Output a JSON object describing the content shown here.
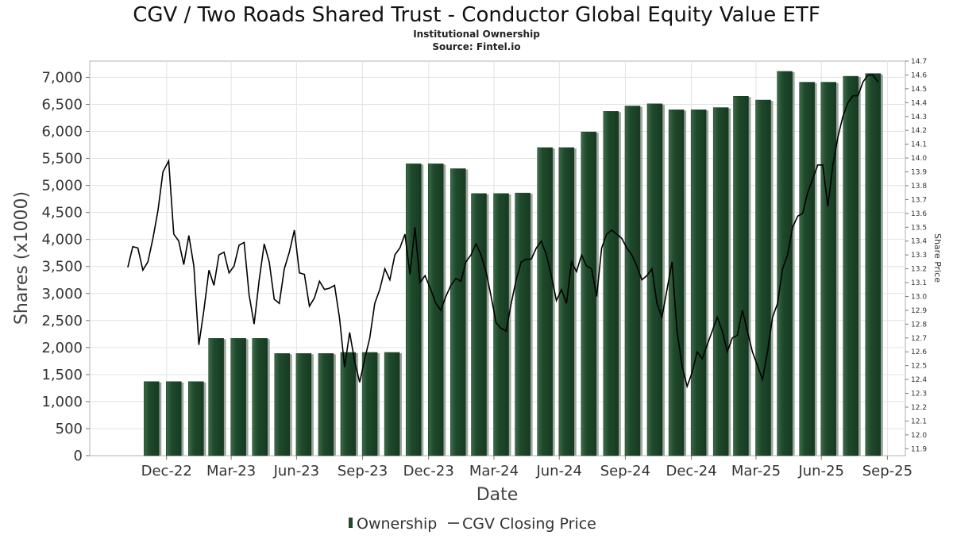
{
  "chart_data": {
    "type": "bar",
    "title": "CGV / Two Roads Shared Trust - Conductor Global Equity Value ETF",
    "subtitle": "Institutional Ownership",
    "source": "Source: Fintel.io",
    "xlabel": "Date",
    "ylabel": "Shares (x1000)",
    "y2label": "Share Price",
    "ylim": [
      0,
      7300
    ],
    "y2lim": [
      11.85,
      14.7
    ],
    "yticks": [
      0,
      500,
      1000,
      1500,
      2000,
      2500,
      3000,
      3500,
      4000,
      4500,
      5000,
      5500,
      6000,
      6500,
      7000
    ],
    "ytick_labels": [
      "0",
      "500",
      "1,000",
      "1,500",
      "2,000",
      "2,500",
      "3,000",
      "3,500",
      "4,000",
      "4,500",
      "5,000",
      "5,500",
      "6,000",
      "6,500",
      "7,000"
    ],
    "y2ticks": [
      "11.9",
      "12.0",
      "12.1",
      "12.2",
      "12.3",
      "12.4",
      "12.5",
      "12.6",
      "12.7",
      "12.8",
      "12.9",
      "13.0",
      "13.1",
      "13.2",
      "13.3",
      "13.4",
      "13.5",
      "13.6",
      "13.7",
      "13.8",
      "13.9",
      "14.0",
      "14.1",
      "14.2",
      "14.3",
      "14.4",
      "14.5",
      "14.6",
      "14.7"
    ],
    "xlim": [
      "2022-09-15",
      "2025-10-25"
    ],
    "xticks": [
      {
        "date": "2022-12-31",
        "label": "Dec-22"
      },
      {
        "date": "2023-03-31",
        "label": "Mar-23"
      },
      {
        "date": "2023-06-30",
        "label": "Jun-23"
      },
      {
        "date": "2023-09-30",
        "label": "Sep-23"
      },
      {
        "date": "2023-12-31",
        "label": "Dec-23"
      },
      {
        "date": "2024-03-31",
        "label": "Mar-24"
      },
      {
        "date": "2024-06-30",
        "label": "Jun-24"
      },
      {
        "date": "2024-09-30",
        "label": "Sep-24"
      },
      {
        "date": "2024-12-31",
        "label": "Dec-24"
      },
      {
        "date": "2025-03-31",
        "label": "Mar-25"
      },
      {
        "date": "2025-06-30",
        "label": "Jun-25"
      },
      {
        "date": "2025-09-30",
        "label": "Sep-25"
      }
    ],
    "series": [
      {
        "name": "Ownership",
        "type": "bar",
        "color": "#1f4a2c",
        "points": [
          {
            "x": "2022-12-10",
            "y": 1370
          },
          {
            "x": "2023-01-10",
            "y": 1370
          },
          {
            "x": "2023-02-10",
            "y": 1370
          },
          {
            "x": "2023-03-10",
            "y": 2170
          },
          {
            "x": "2023-04-10",
            "y": 2170
          },
          {
            "x": "2023-05-10",
            "y": 2170
          },
          {
            "x": "2023-06-10",
            "y": 1890
          },
          {
            "x": "2023-07-10",
            "y": 1890
          },
          {
            "x": "2023-08-10",
            "y": 1890
          },
          {
            "x": "2023-09-10",
            "y": 1910
          },
          {
            "x": "2023-10-10",
            "y": 1910
          },
          {
            "x": "2023-11-10",
            "y": 1910
          },
          {
            "x": "2023-12-10",
            "y": 5400
          },
          {
            "x": "2024-01-10",
            "y": 5400
          },
          {
            "x": "2024-02-10",
            "y": 5310
          },
          {
            "x": "2024-03-10",
            "y": 4850
          },
          {
            "x": "2024-04-10",
            "y": 4850
          },
          {
            "x": "2024-05-10",
            "y": 4860
          },
          {
            "x": "2024-06-10",
            "y": 5700
          },
          {
            "x": "2024-07-10",
            "y": 5700
          },
          {
            "x": "2024-08-10",
            "y": 5990
          },
          {
            "x": "2024-09-10",
            "y": 6370
          },
          {
            "x": "2024-10-10",
            "y": 6470
          },
          {
            "x": "2024-11-10",
            "y": 6510
          },
          {
            "x": "2024-12-10",
            "y": 6400
          },
          {
            "x": "2025-01-10",
            "y": 6400
          },
          {
            "x": "2025-02-10",
            "y": 6440
          },
          {
            "x": "2025-03-10",
            "y": 6650
          },
          {
            "x": "2025-04-10",
            "y": 6580
          },
          {
            "x": "2025-05-10",
            "y": 7110
          },
          {
            "x": "2025-06-10",
            "y": 6910
          },
          {
            "x": "2025-07-10",
            "y": 6910
          },
          {
            "x": "2025-08-10",
            "y": 7020
          },
          {
            "x": "2025-09-10",
            "y": 7070
          }
        ]
      },
      {
        "name": "CGV Closing Price",
        "type": "line",
        "axis": "right",
        "color": "#000000",
        "points": [
          {
            "x": "2022-11-07",
            "y": 13.21
          },
          {
            "x": "2022-11-14",
            "y": 13.36
          },
          {
            "x": "2022-11-21",
            "y": 13.35
          },
          {
            "x": "2022-11-28",
            "y": 13.19
          },
          {
            "x": "2022-12-05",
            "y": 13.25
          },
          {
            "x": "2022-12-12",
            "y": 13.42
          },
          {
            "x": "2022-12-19",
            "y": 13.62
          },
          {
            "x": "2022-12-26",
            "y": 13.9
          },
          {
            "x": "2023-01-03",
            "y": 13.98
          },
          {
            "x": "2023-01-10",
            "y": 13.45
          },
          {
            "x": "2023-01-17",
            "y": 13.4
          },
          {
            "x": "2023-01-24",
            "y": 13.23
          },
          {
            "x": "2023-01-31",
            "y": 13.44
          },
          {
            "x": "2023-02-07",
            "y": 13.22
          },
          {
            "x": "2023-02-14",
            "y": 12.65
          },
          {
            "x": "2023-02-21",
            "y": 12.9
          },
          {
            "x": "2023-02-28",
            "y": 13.19
          },
          {
            "x": "2023-03-07",
            "y": 13.08
          },
          {
            "x": "2023-03-14",
            "y": 13.3
          },
          {
            "x": "2023-03-21",
            "y": 13.32
          },
          {
            "x": "2023-03-28",
            "y": 13.17
          },
          {
            "x": "2023-04-04",
            "y": 13.22
          },
          {
            "x": "2023-04-11",
            "y": 13.37
          },
          {
            "x": "2023-04-18",
            "y": 13.39
          },
          {
            "x": "2023-04-25",
            "y": 13.01
          },
          {
            "x": "2023-05-02",
            "y": 12.8
          },
          {
            "x": "2023-05-09",
            "y": 13.12
          },
          {
            "x": "2023-05-16",
            "y": 13.38
          },
          {
            "x": "2023-05-23",
            "y": 13.25
          },
          {
            "x": "2023-05-30",
            "y": 12.98
          },
          {
            "x": "2023-06-06",
            "y": 12.95
          },
          {
            "x": "2023-06-13",
            "y": 13.2
          },
          {
            "x": "2023-06-20",
            "y": 13.32
          },
          {
            "x": "2023-06-27",
            "y": 13.48
          },
          {
            "x": "2023-07-04",
            "y": 13.17
          },
          {
            "x": "2023-07-11",
            "y": 13.16
          },
          {
            "x": "2023-07-18",
            "y": 12.93
          },
          {
            "x": "2023-07-25",
            "y": 12.99
          },
          {
            "x": "2023-08-01",
            "y": 13.11
          },
          {
            "x": "2023-08-08",
            "y": 13.05
          },
          {
            "x": "2023-08-15",
            "y": 13.06
          },
          {
            "x": "2023-08-22",
            "y": 13.08
          },
          {
            "x": "2023-08-29",
            "y": 12.84
          },
          {
            "x": "2023-09-05",
            "y": 12.49
          },
          {
            "x": "2023-09-12",
            "y": 12.74
          },
          {
            "x": "2023-09-19",
            "y": 12.53
          },
          {
            "x": "2023-09-26",
            "y": 12.38
          },
          {
            "x": "2023-10-03",
            "y": 12.55
          },
          {
            "x": "2023-10-10",
            "y": 12.7
          },
          {
            "x": "2023-10-17",
            "y": 12.95
          },
          {
            "x": "2023-10-24",
            "y": 13.05
          },
          {
            "x": "2023-10-31",
            "y": 13.2
          },
          {
            "x": "2023-11-07",
            "y": 13.12
          },
          {
            "x": "2023-11-14",
            "y": 13.3
          },
          {
            "x": "2023-11-21",
            "y": 13.35
          },
          {
            "x": "2023-11-28",
            "y": 13.45
          },
          {
            "x": "2023-12-05",
            "y": 13.16
          },
          {
            "x": "2023-12-12",
            "y": 13.5
          },
          {
            "x": "2023-12-19",
            "y": 13.1
          },
          {
            "x": "2023-12-26",
            "y": 13.15
          },
          {
            "x": "2024-01-03",
            "y": 13.05
          },
          {
            "x": "2024-01-10",
            "y": 12.95
          },
          {
            "x": "2024-01-17",
            "y": 12.9
          },
          {
            "x": "2024-01-24",
            "y": 13.0
          },
          {
            "x": "2024-01-31",
            "y": 13.08
          },
          {
            "x": "2024-02-07",
            "y": 13.13
          },
          {
            "x": "2024-02-14",
            "y": 13.11
          },
          {
            "x": "2024-02-21",
            "y": 13.25
          },
          {
            "x": "2024-02-28",
            "y": 13.3
          },
          {
            "x": "2024-03-06",
            "y": 13.38
          },
          {
            "x": "2024-03-13",
            "y": 13.3
          },
          {
            "x": "2024-03-20",
            "y": 13.18
          },
          {
            "x": "2024-03-27",
            "y": 13.0
          },
          {
            "x": "2024-04-03",
            "y": 12.81
          },
          {
            "x": "2024-04-10",
            "y": 12.77
          },
          {
            "x": "2024-04-17",
            "y": 12.75
          },
          {
            "x": "2024-04-24",
            "y": 12.95
          },
          {
            "x": "2024-05-01",
            "y": 13.12
          },
          {
            "x": "2024-05-08",
            "y": 13.25
          },
          {
            "x": "2024-05-15",
            "y": 13.27
          },
          {
            "x": "2024-05-22",
            "y": 13.27
          },
          {
            "x": "2024-05-29",
            "y": 13.35
          },
          {
            "x": "2024-06-05",
            "y": 13.4
          },
          {
            "x": "2024-06-12",
            "y": 13.3
          },
          {
            "x": "2024-06-19",
            "y": 13.15
          },
          {
            "x": "2024-06-26",
            "y": 12.97
          },
          {
            "x": "2024-07-03",
            "y": 13.05
          },
          {
            "x": "2024-07-10",
            "y": 12.95
          },
          {
            "x": "2024-07-17",
            "y": 13.25
          },
          {
            "x": "2024-07-24",
            "y": 13.18
          },
          {
            "x": "2024-07-31",
            "y": 13.3
          },
          {
            "x": "2024-08-07",
            "y": 13.22
          },
          {
            "x": "2024-08-14",
            "y": 13.2
          },
          {
            "x": "2024-08-21",
            "y": 13.0
          },
          {
            "x": "2024-08-28",
            "y": 13.35
          },
          {
            "x": "2024-09-04",
            "y": 13.45
          },
          {
            "x": "2024-09-11",
            "y": 13.48
          },
          {
            "x": "2024-09-18",
            "y": 13.45
          },
          {
            "x": "2024-09-25",
            "y": 13.42
          },
          {
            "x": "2024-10-02",
            "y": 13.35
          },
          {
            "x": "2024-10-09",
            "y": 13.3
          },
          {
            "x": "2024-10-16",
            "y": 13.22
          },
          {
            "x": "2024-10-23",
            "y": 13.12
          },
          {
            "x": "2024-10-30",
            "y": 13.15
          },
          {
            "x": "2024-11-06",
            "y": 13.2
          },
          {
            "x": "2024-11-13",
            "y": 12.95
          },
          {
            "x": "2024-11-20",
            "y": 12.85
          },
          {
            "x": "2024-11-27",
            "y": 13.05
          },
          {
            "x": "2024-12-04",
            "y": 13.25
          },
          {
            "x": "2024-12-11",
            "y": 12.75
          },
          {
            "x": "2024-12-18",
            "y": 12.5
          },
          {
            "x": "2024-12-25",
            "y": 12.35
          },
          {
            "x": "2025-01-01",
            "y": 12.45
          },
          {
            "x": "2025-01-08",
            "y": 12.6
          },
          {
            "x": "2025-01-15",
            "y": 12.55
          },
          {
            "x": "2025-01-22",
            "y": 12.65
          },
          {
            "x": "2025-01-29",
            "y": 12.75
          },
          {
            "x": "2025-02-05",
            "y": 12.85
          },
          {
            "x": "2025-02-12",
            "y": 12.75
          },
          {
            "x": "2025-02-19",
            "y": 12.6
          },
          {
            "x": "2025-02-26",
            "y": 12.7
          },
          {
            "x": "2025-03-05",
            "y": 12.72
          },
          {
            "x": "2025-03-12",
            "y": 12.9
          },
          {
            "x": "2025-03-19",
            "y": 12.75
          },
          {
            "x": "2025-03-26",
            "y": 12.6
          },
          {
            "x": "2025-04-02",
            "y": 12.5
          },
          {
            "x": "2025-04-09",
            "y": 12.4
          },
          {
            "x": "2025-04-16",
            "y": 12.6
          },
          {
            "x": "2025-04-23",
            "y": 12.85
          },
          {
            "x": "2025-04-30",
            "y": 12.95
          },
          {
            "x": "2025-05-07",
            "y": 13.2
          },
          {
            "x": "2025-05-14",
            "y": 13.3
          },
          {
            "x": "2025-05-21",
            "y": 13.5
          },
          {
            "x": "2025-05-28",
            "y": 13.58
          },
          {
            "x": "2025-06-04",
            "y": 13.6
          },
          {
            "x": "2025-06-11",
            "y": 13.75
          },
          {
            "x": "2025-06-18",
            "y": 13.85
          },
          {
            "x": "2025-06-25",
            "y": 13.95
          },
          {
            "x": "2025-07-02",
            "y": 13.95
          },
          {
            "x": "2025-07-09",
            "y": 13.65
          },
          {
            "x": "2025-07-16",
            "y": 13.95
          },
          {
            "x": "2025-07-23",
            "y": 14.15
          },
          {
            "x": "2025-07-30",
            "y": 14.3
          },
          {
            "x": "2025-08-06",
            "y": 14.4
          },
          {
            "x": "2025-08-13",
            "y": 14.45
          },
          {
            "x": "2025-08-20",
            "y": 14.45
          },
          {
            "x": "2025-08-27",
            "y": 14.55
          },
          {
            "x": "2025-09-03",
            "y": 14.6
          },
          {
            "x": "2025-09-10",
            "y": 14.6
          },
          {
            "x": "2025-09-17",
            "y": 14.55
          }
        ]
      }
    ],
    "legend": {
      "position": "bottom-center",
      "items": [
        "Ownership",
        "CGV Closing Price"
      ]
    },
    "grid": true
  }
}
